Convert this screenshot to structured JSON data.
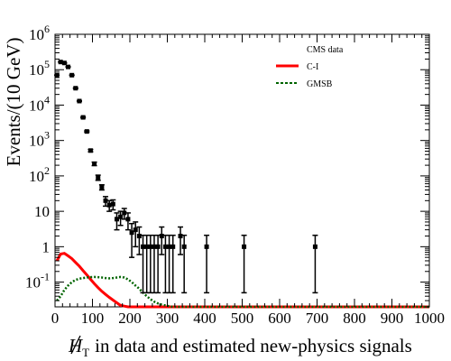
{
  "chart_data": {
    "type": "scatter",
    "title": "",
    "xlabel": "in data and estimated new-physics signals",
    "xlabel_symbol": "H",
    "xlabel_subscript": "T",
    "ylabel": "Events/(10 GeV)",
    "xlim": [
      0,
      1000
    ],
    "ylim": [
      0.02,
      1000000
    ],
    "yscale": "log",
    "grid": false,
    "legend_position": "top-right",
    "x_ticks": [
      0,
      100,
      200,
      300,
      400,
      500,
      600,
      700,
      800,
      900,
      1000
    ],
    "x_tick_labels": [
      "0",
      "100",
      "200",
      "300",
      "400",
      "500",
      "600",
      "700",
      "800",
      "900",
      "1000"
    ],
    "y_tick_labels": [
      {
        "value": 0.1,
        "base": "10",
        "exp": "-1"
      },
      {
        "value": 1,
        "base": "1",
        "exp": ""
      },
      {
        "value": 10,
        "base": "10",
        "exp": ""
      },
      {
        "value": 100,
        "base": "10",
        "exp": "2"
      },
      {
        "value": 1000,
        "base": "10",
        "exp": "3"
      },
      {
        "value": 10000,
        "base": "10",
        "exp": "4"
      },
      {
        "value": 100000,
        "base": "10",
        "exp": "5"
      },
      {
        "value": 1000000,
        "base": "10",
        "exp": "6"
      }
    ],
    "series": [
      {
        "name": "CMS data",
        "style": "points-with-errors",
        "color": "#000000",
        "x": [
          5,
          15,
          25,
          35,
          45,
          55,
          65,
          75,
          85,
          95,
          105,
          115,
          125,
          135,
          145,
          155,
          165,
          175,
          185,
          195,
          205,
          215,
          225,
          235,
          245,
          255,
          265,
          275,
          285,
          295,
          305,
          315,
          335,
          345,
          405,
          505,
          695
        ],
        "y": [
          70000,
          165000,
          155000,
          120000,
          70000,
          30000,
          13000,
          4500,
          1800,
          520,
          220,
          90,
          48,
          20,
          15,
          16,
          6,
          7,
          9,
          6,
          2.5,
          3,
          2,
          1,
          1,
          1,
          1,
          1,
          2,
          1,
          1,
          1,
          2,
          1,
          1,
          1,
          1
        ],
        "yerr_low": [
          1000,
          2000,
          2000,
          1500,
          1000,
          500,
          300,
          150,
          80,
          40,
          25,
          15,
          8,
          6,
          5,
          5,
          3,
          3,
          3,
          3,
          2,
          2,
          1.4,
          0.95,
          0.95,
          0.95,
          0.95,
          0.95,
          1.4,
          0.95,
          0.95,
          0.95,
          1.4,
          0.95,
          0.95,
          0.95,
          0.95
        ],
        "yerr_high": [
          1000,
          2000,
          2000,
          1500,
          1000,
          500,
          300,
          150,
          80,
          40,
          25,
          15,
          8,
          6,
          5,
          5,
          3,
          3,
          3,
          3,
          2,
          2,
          1.6,
          1.1,
          1.1,
          1.1,
          1.1,
          1.1,
          1.6,
          1.1,
          1.1,
          1.1,
          1.6,
          1.1,
          1.1,
          1.1,
          1.1
        ]
      },
      {
        "name": "C-I",
        "style": "line",
        "color": "#ff0000",
        "x": [
          5,
          15,
          25,
          35,
          45,
          55,
          65,
          75,
          85,
          95,
          105,
          115,
          125,
          135,
          145,
          155,
          165,
          175,
          185,
          195,
          205,
          215,
          230,
          1000
        ],
        "y": [
          0.4,
          0.62,
          0.65,
          0.55,
          0.46,
          0.36,
          0.28,
          0.21,
          0.16,
          0.12,
          0.09,
          0.07,
          0.055,
          0.045,
          0.037,
          0.031,
          0.026,
          0.022,
          0.021,
          0.02,
          0.02,
          0.02,
          0.02,
          0.02
        ]
      },
      {
        "name": "GMSB",
        "style": "dashed",
        "color": "#006400",
        "x": [
          5,
          15,
          25,
          35,
          45,
          55,
          65,
          75,
          85,
          95,
          105,
          115,
          125,
          135,
          145,
          155,
          165,
          175,
          185,
          195,
          205,
          215,
          225,
          235,
          245,
          255,
          265,
          275,
          285,
          295,
          305,
          315,
          325,
          1000
        ],
        "y": [
          0.03,
          0.04,
          0.06,
          0.08,
          0.1,
          0.115,
          0.125,
          0.13,
          0.135,
          0.138,
          0.14,
          0.138,
          0.135,
          0.13,
          0.128,
          0.13,
          0.135,
          0.14,
          0.135,
          0.12,
          0.1,
          0.08,
          0.065,
          0.05,
          0.04,
          0.033,
          0.028,
          0.025,
          0.023,
          0.022,
          0.021,
          0.02,
          0.02,
          0.02
        ]
      }
    ]
  }
}
